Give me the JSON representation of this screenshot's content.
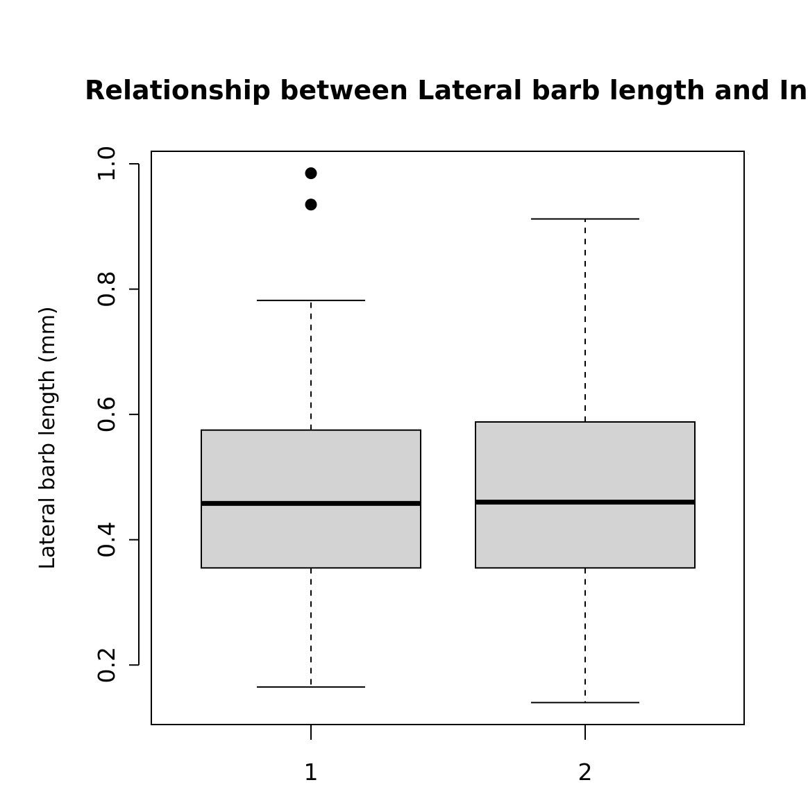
{
  "chart_data": {
    "type": "boxplot",
    "title": "Relationship between Lateral barb length and Instar",
    "xlabel": "",
    "ylabel": "Lateral barb length (mm)",
    "ylim": [
      0.105,
      1.02
    ],
    "y_ticks": [
      0.2,
      0.4,
      0.6,
      0.8,
      1.0
    ],
    "y_tick_labels": [
      "0.2",
      "0.4",
      "0.6",
      "0.8",
      "1.0"
    ],
    "categories": [
      "1",
      "2"
    ],
    "grid": false,
    "box_fill": "#d3d3d3",
    "boxes": [
      {
        "category": "1",
        "whisker_low": 0.165,
        "q1": 0.355,
        "median": 0.458,
        "q3": 0.575,
        "whisker_high": 0.782,
        "outliers": [
          0.935,
          0.985
        ]
      },
      {
        "category": "2",
        "whisker_low": 0.14,
        "q1": 0.355,
        "median": 0.46,
        "q3": 0.588,
        "whisker_high": 0.912,
        "outliers": []
      }
    ]
  }
}
